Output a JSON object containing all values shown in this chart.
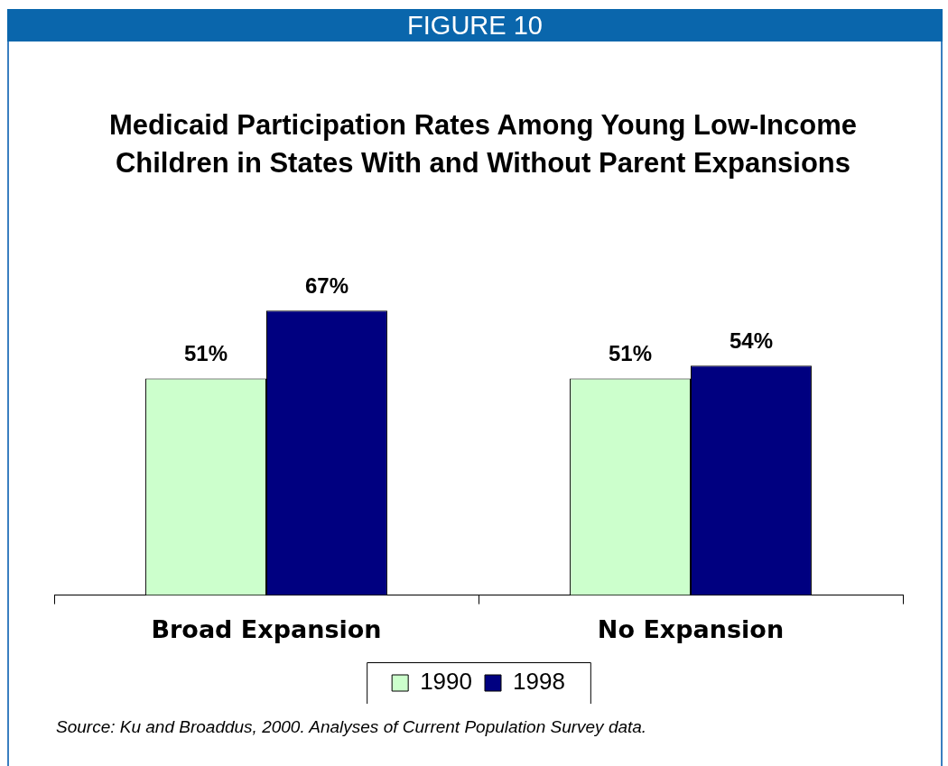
{
  "chart_data": {
    "type": "bar",
    "title": "Medicaid Participation Rates Among Young Low-Income Children in States With and Without Parent Expansions",
    "categories": [
      "Broad Expansion",
      "No Expansion"
    ],
    "series": [
      {
        "name": "1990",
        "color": "#ccffcc",
        "values": [
          51,
          51
        ],
        "value_labels": [
          "51%",
          "51%"
        ]
      },
      {
        "name": "1998",
        "color": "#000080",
        "values": [
          67,
          54
        ],
        "value_labels": [
          "67%",
          "54%"
        ]
      }
    ],
    "legend": "bottom",
    "annotations": [
      "FIGURE 10",
      "Source: Ku and Broaddus, 2000. Analyses of Current Population Survey data."
    ]
  }
}
